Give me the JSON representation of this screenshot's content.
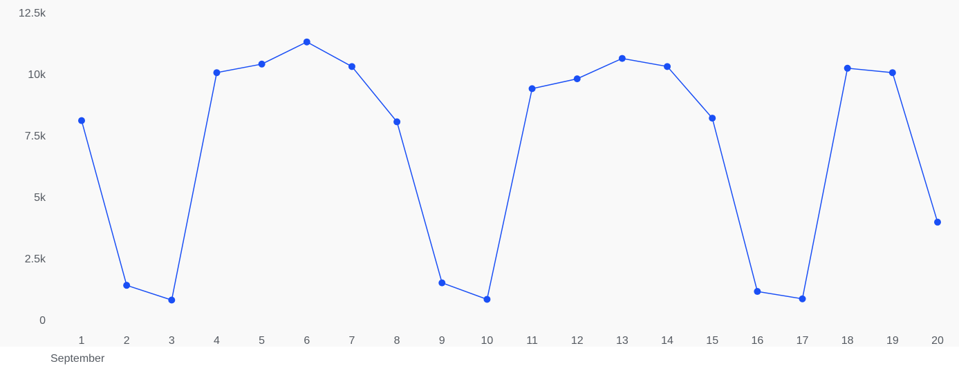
{
  "chart_data": {
    "type": "line",
    "x": [
      1,
      2,
      3,
      4,
      5,
      6,
      7,
      8,
      9,
      10,
      11,
      12,
      13,
      14,
      15,
      16,
      17,
      18,
      19,
      20
    ],
    "x_tick_labels": [
      "1",
      "2",
      "3",
      "4",
      "5",
      "6",
      "7",
      "8",
      "9",
      "10",
      "11",
      "12",
      "13",
      "14",
      "15",
      "16",
      "17",
      "18",
      "19",
      "20"
    ],
    "x_sublabel": "September",
    "series": [
      {
        "values": [
          8100,
          1400,
          800,
          10050,
          10400,
          11300,
          10300,
          8050,
          1500,
          830,
          9400,
          9800,
          10630,
          10300,
          8200,
          1150,
          850,
          10230,
          10050,
          3970
        ]
      }
    ],
    "y_ticks": [
      0,
      2500,
      5000,
      7500,
      10000,
      12500
    ],
    "y_tick_labels": [
      "0",
      "2.5k",
      "5k",
      "7.5k",
      "10k",
      "12.5k"
    ],
    "ylim": [
      0,
      12500
    ],
    "grid": false,
    "colors": {
      "line": "#1a4ff5",
      "plot_bg": "#f9f9f9",
      "text": "#555a61"
    }
  }
}
